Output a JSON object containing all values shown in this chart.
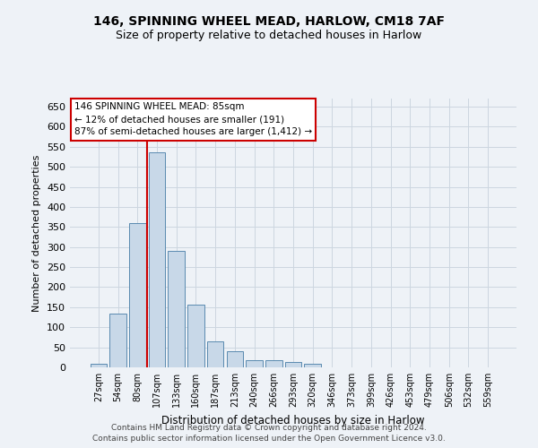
{
  "title": "146, SPINNING WHEEL MEAD, HARLOW, CM18 7AF",
  "subtitle": "Size of property relative to detached houses in Harlow",
  "xlabel": "Distribution of detached houses by size in Harlow",
  "ylabel": "Number of detached properties",
  "bar_color": "#c8d8e8",
  "bar_edge_color": "#5a8ab0",
  "categories": [
    "27sqm",
    "54sqm",
    "80sqm",
    "107sqm",
    "133sqm",
    "160sqm",
    "187sqm",
    "213sqm",
    "240sqm",
    "266sqm",
    "293sqm",
    "320sqm",
    "346sqm",
    "373sqm",
    "399sqm",
    "426sqm",
    "453sqm",
    "479sqm",
    "506sqm",
    "532sqm",
    "559sqm"
  ],
  "values": [
    8,
    135,
    360,
    535,
    290,
    157,
    65,
    40,
    18,
    17,
    13,
    9,
    1,
    0,
    0,
    0,
    1,
    0,
    0,
    1,
    1
  ],
  "ylim": [
    0,
    670
  ],
  "yticks": [
    0,
    50,
    100,
    150,
    200,
    250,
    300,
    350,
    400,
    450,
    500,
    550,
    600,
    650
  ],
  "property_line_x": 2.5,
  "annotation_text": "146 SPINNING WHEEL MEAD: 85sqm\n← 12% of detached houses are smaller (191)\n87% of semi-detached houses are larger (1,412) →",
  "annotation_box_color": "#ffffff",
  "annotation_box_edge_color": "#cc0000",
  "footer_line1": "Contains HM Land Registry data © Crown copyright and database right 2024.",
  "footer_line2": "Contains public sector information licensed under the Open Government Licence v3.0.",
  "grid_color": "#ccd6e0",
  "background_color": "#eef2f7",
  "property_line_color": "#cc0000",
  "fig_width": 6.0,
  "fig_height": 5.0,
  "title_fontsize": 10,
  "subtitle_fontsize": 9
}
